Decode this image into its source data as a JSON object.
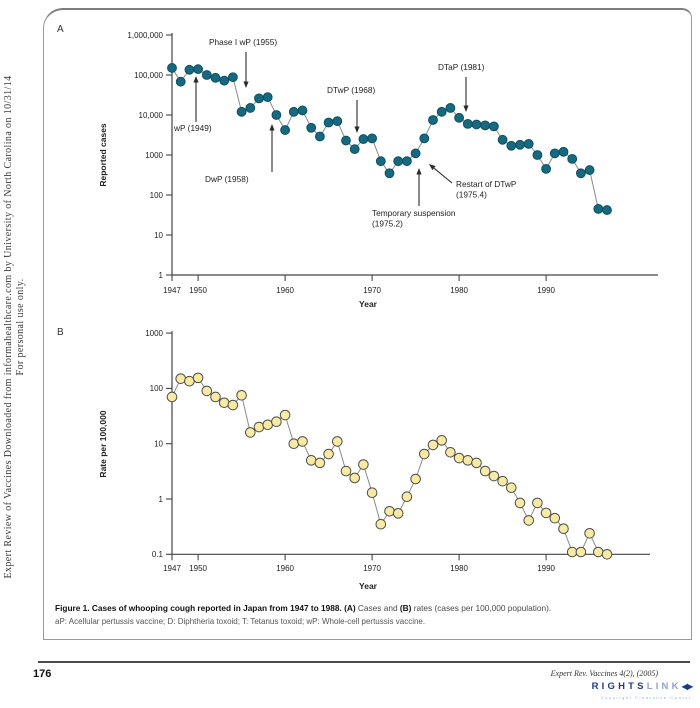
{
  "sidebar": {
    "line1": "Expert Review of Vaccines Downloaded from informahealthcare.com by University of North Carolina on 10/31/14",
    "line2": "For personal use only."
  },
  "caption": {
    "bold1": "Figure 1. Cases of whooping cough reported in Japan from 1947 to 1988. ",
    "a": "(A)",
    "mid": " Cases and ",
    "b": "(B)",
    "tail": " rates (cases per 100,000 population).",
    "line2": "aP: Acellular pertussis vaccine; D: Diphtheria toxoid; T: Tetanus toxoid; wP: Whole-cell pertussis vaccine."
  },
  "footer": {
    "page_number": "176",
    "journal": "Expert Rev. Vaccines 4(2), (2005)",
    "rightslink": {
      "rights": "RIGHTS",
      "link": "LINK",
      "arrow": "◀▶",
      "tagline": "Copyright Clearance Center"
    }
  },
  "colors": {
    "axis": "#444444",
    "connect_line": "#8a8a8a",
    "annotation_text": "#222222",
    "teal_point": "#16697f",
    "teal_stroke": "#0c4f63",
    "yellow_point": "#f8eaa2",
    "yellow_stroke": "#4d4d4d"
  },
  "chart_data": [
    {
      "id": "A",
      "panel_label": "A",
      "type": "scatter",
      "connected": true,
      "title": "",
      "xlabel": "Year",
      "ylabel": "Reported cases",
      "y_scale": "log",
      "ylim": [
        1,
        1000000
      ],
      "xlim": [
        1947,
        1998
      ],
      "xticks": [
        1947,
        1950,
        1960,
        1970,
        1980,
        1990
      ],
      "xtick_labels": [
        "1947",
        "1950",
        "1960",
        "1970",
        "1980",
        "1990"
      ],
      "ytick_values": [
        1000000,
        100000,
        10000,
        1000,
        100,
        10,
        1
      ],
      "ytick_labels": [
        "1,000,000",
        "100,000",
        "10,000",
        "1000",
        "100",
        "10",
        "1"
      ],
      "point_color": "#16697f",
      "point_stroke": "#0c4f63",
      "x": [
        1947,
        1948,
        1949,
        1950,
        1951,
        1952,
        1953,
        1954,
        1955,
        1956,
        1957,
        1958,
        1959,
        1960,
        1961,
        1962,
        1963,
        1964,
        1965,
        1966,
        1967,
        1968,
        1969,
        1970,
        1971,
        1972,
        1973,
        1974,
        1975,
        1976,
        1977,
        1978,
        1979,
        1980,
        1981,
        1982,
        1983,
        1984,
        1985,
        1986,
        1987,
        1988,
        1989,
        1990,
        1991,
        1992,
        1993,
        1994,
        1995,
        1996,
        1997
      ],
      "y": [
        150000,
        68000,
        135000,
        140000,
        100000,
        85000,
        72000,
        88000,
        12000,
        15000,
        26000,
        28000,
        10000,
        4200,
        12000,
        13000,
        4800,
        2900,
        6500,
        7000,
        2300,
        1400,
        2500,
        2600,
        700,
        350,
        700,
        700,
        1100,
        2600,
        7500,
        12000,
        15000,
        8500,
        6000,
        5800,
        5500,
        5200,
        2400,
        1700,
        1800,
        1900,
        1000,
        450,
        1100,
        1200,
        800,
        350,
        420,
        45,
        42
      ],
      "annotations": [
        {
          "id": "wp1949",
          "lines": [
            "wP (1949)"
          ]
        },
        {
          "id": "phase1wp",
          "lines": [
            "Phase I wP (1955)"
          ]
        },
        {
          "id": "dwp",
          "lines": [
            "DwP (1958)"
          ]
        },
        {
          "id": "dtwp",
          "lines": [
            "DTwP (1968)"
          ]
        },
        {
          "id": "dtap",
          "lines": [
            "DTaP (1981)"
          ]
        },
        {
          "id": "restart",
          "lines": [
            "Restart of DTwP",
            "(1975.4)"
          ]
        },
        {
          "id": "suspension",
          "lines": [
            "Temporary suspension",
            "(1975.2)"
          ]
        }
      ]
    },
    {
      "id": "B",
      "panel_label": "B",
      "type": "scatter",
      "connected": true,
      "title": "",
      "xlabel": "Year",
      "ylabel": "Rate per 100,000",
      "y_scale": "log",
      "ylim": [
        0.1,
        1000
      ],
      "xlim": [
        1947,
        1998
      ],
      "xticks": [
        1947,
        1950,
        1960,
        1970,
        1980,
        1990
      ],
      "xtick_labels": [
        "1947",
        "1950",
        "1960",
        "1970",
        "1980",
        "1990"
      ],
      "ytick_values": [
        1000,
        100,
        10,
        1,
        0.1
      ],
      "ytick_labels": [
        "1000",
        "100",
        "10",
        "1",
        "0.1"
      ],
      "point_color": "#f8eaa2",
      "point_stroke": "#4d4d4d",
      "x": [
        1947,
        1948,
        1949,
        1950,
        1951,
        1952,
        1953,
        1954,
        1955,
        1956,
        1957,
        1958,
        1959,
        1960,
        1961,
        1962,
        1963,
        1964,
        1965,
        1966,
        1967,
        1968,
        1969,
        1970,
        1971,
        1972,
        1973,
        1974,
        1975,
        1976,
        1977,
        1978,
        1979,
        1980,
        1981,
        1982,
        1983,
        1984,
        1985,
        1986,
        1987,
        1988,
        1989,
        1990,
        1991,
        1992,
        1993,
        1994,
        1995,
        1996,
        1997
      ],
      "y": [
        70,
        150,
        135,
        155,
        90,
        70,
        55,
        50,
        75,
        16,
        20,
        22,
        25,
        33,
        10,
        11,
        5,
        4.5,
        6.5,
        11,
        3.2,
        2.4,
        4.2,
        1.3,
        0.35,
        0.6,
        0.55,
        1.1,
        2.3,
        6.5,
        9.5,
        11.5,
        7,
        5.5,
        5,
        4.5,
        3.2,
        2.6,
        2.1,
        1.6,
        0.85,
        0.41,
        0.85,
        0.56,
        0.45,
        0.29,
        0.11,
        0.11,
        0.24,
        0.11,
        0.1
      ],
      "annotations": []
    }
  ]
}
